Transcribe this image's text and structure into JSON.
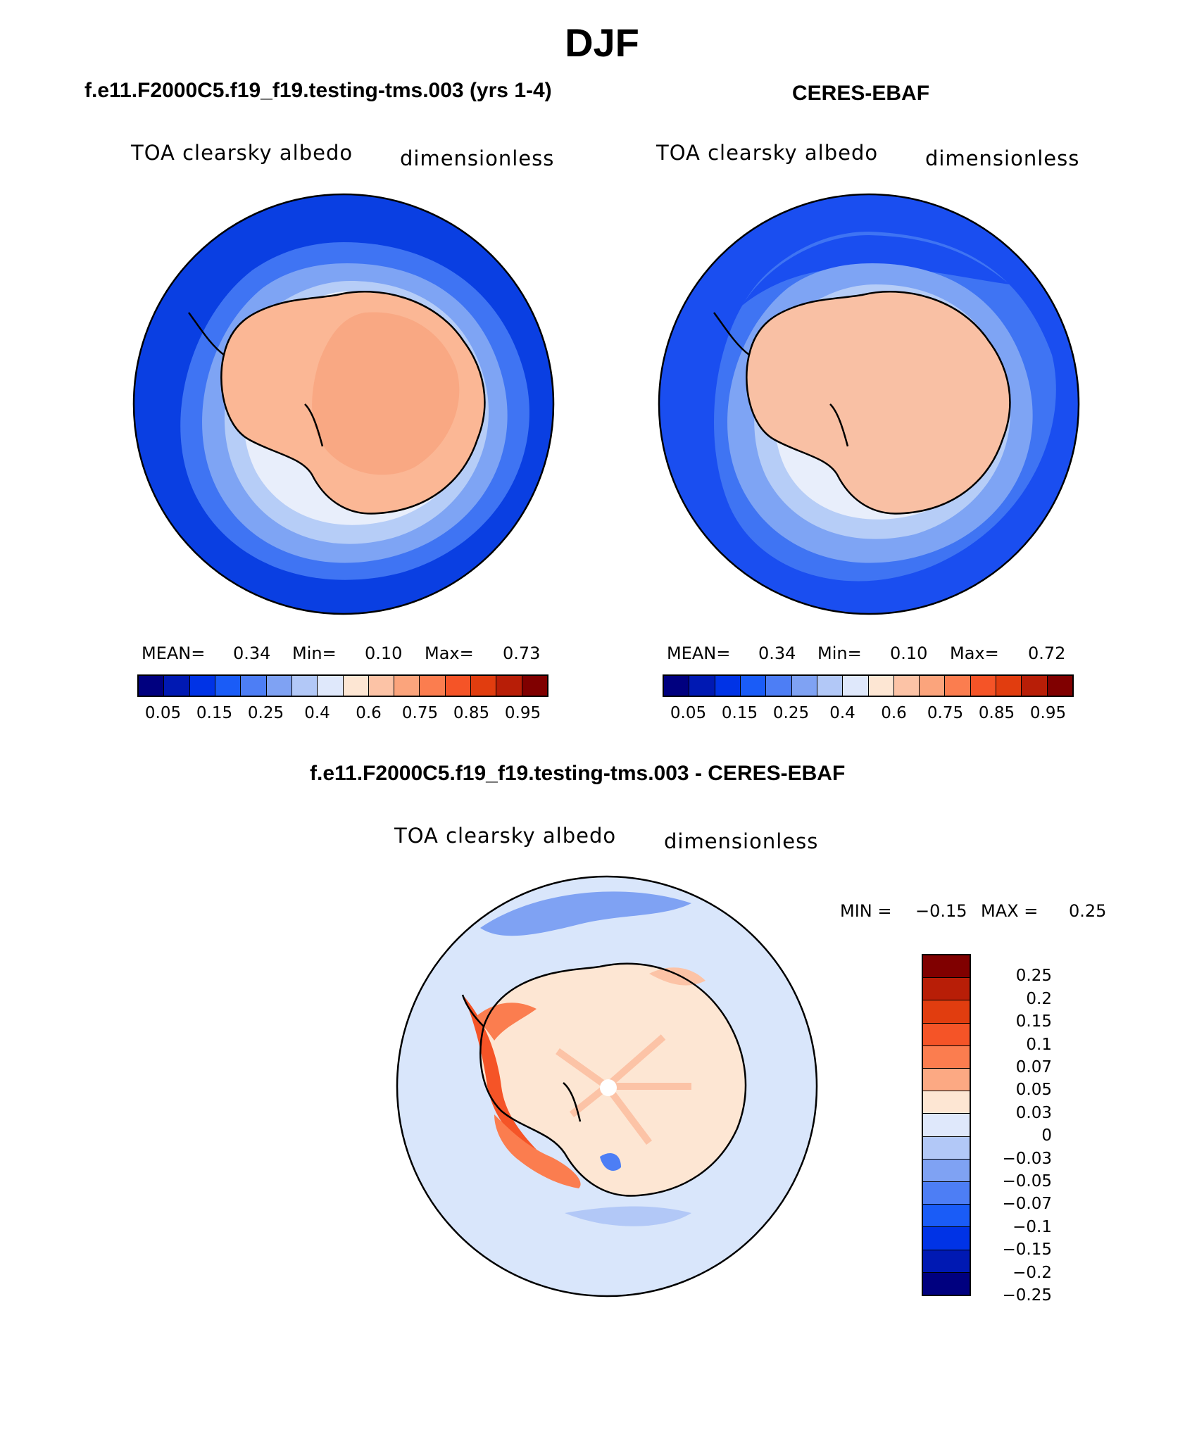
{
  "title": "DJF",
  "panels": {
    "model": {
      "case_title": "f.e11.F2000C5.f19_f19.testing-tms.003 (yrs 1-4)",
      "variable": "TOA clearsky albedo",
      "units": "dimensionless",
      "stats": {
        "mean_label": "MEAN=",
        "mean": "0.34",
        "min_label": "Min=",
        "min": "0.10",
        "max_label": "Max=",
        "max": "0.73"
      }
    },
    "obs": {
      "case_title": "CERES-EBAF",
      "variable": "TOA clearsky albedo",
      "units": "dimensionless",
      "stats": {
        "mean_label": "MEAN=",
        "mean": "0.34",
        "min_label": "Min=",
        "min": "0.10",
        "max_label": "Max=",
        "max": "0.72"
      }
    },
    "diff": {
      "case_title": "f.e11.F2000C5.f19_f19.testing-tms.003 - CERES-EBAF",
      "variable": "TOA clearsky albedo",
      "units": "dimensionless",
      "stats": {
        "min_label": "MIN =",
        "min": "−0.15",
        "max_label": "MAX =",
        "max": "0.25"
      }
    }
  },
  "colorbar_main": {
    "colors": [
      "#00007f",
      "#0019b3",
      "#0033e6",
      "#1a5cf7",
      "#4d7ef5",
      "#7fa2f3",
      "#b2c8f7",
      "#dfe8fb",
      "#fde6d3",
      "#fcc3a6",
      "#fba47c",
      "#fb7d4f",
      "#f55427",
      "#e13d0f",
      "#b81e07",
      "#800000"
    ],
    "tick_labels": [
      "0.05",
      "0.15",
      "0.25",
      "0.4",
      "0.6",
      "0.75",
      "0.85",
      "0.95"
    ]
  },
  "colorbar_diff": {
    "colors": [
      "#800000",
      "#b81e07",
      "#e13d0f",
      "#f55427",
      "#fb7d4f",
      "#fca983",
      "#fde6d3",
      "#dfe8fb",
      "#b2c8f7",
      "#7fa2f3",
      "#4d7ef5",
      "#1a5cf7",
      "#0033e6",
      "#0019b3",
      "#00007f"
    ],
    "tick_labels": [
      "0.25",
      "0.2",
      "0.15",
      "0.1",
      "0.07",
      "0.05",
      "0.03",
      "0",
      "−0.03",
      "−0.05",
      "−0.07",
      "−0.1",
      "−0.15",
      "−0.2",
      "−0.25"
    ]
  },
  "map_colors": {
    "ocean_model": "#0a3fe2",
    "ocean_obs": "#1a4ef0",
    "ice_band_1": "#3f74f3",
    "ice_band_2": "#7ea4f4",
    "ice_band_3": "#b6cdf7",
    "ice_band_4": "#e8eefb",
    "land_model": "#fbb795",
    "land_model_inner": "#f9a883",
    "land_obs": "#f9c0a4",
    "diff_ocean": "#d9e6fb",
    "diff_land": "#fde6d3",
    "diff_pos_1": "#fcc3a6",
    "diff_pos_2": "#fb7d4f",
    "diff_pos_3": "#f55427",
    "diff_neg_1": "#b2c8f7",
    "diff_neg_2": "#7fa2f3",
    "diff_neg_3": "#4d7ef5",
    "coast": "#000000"
  }
}
